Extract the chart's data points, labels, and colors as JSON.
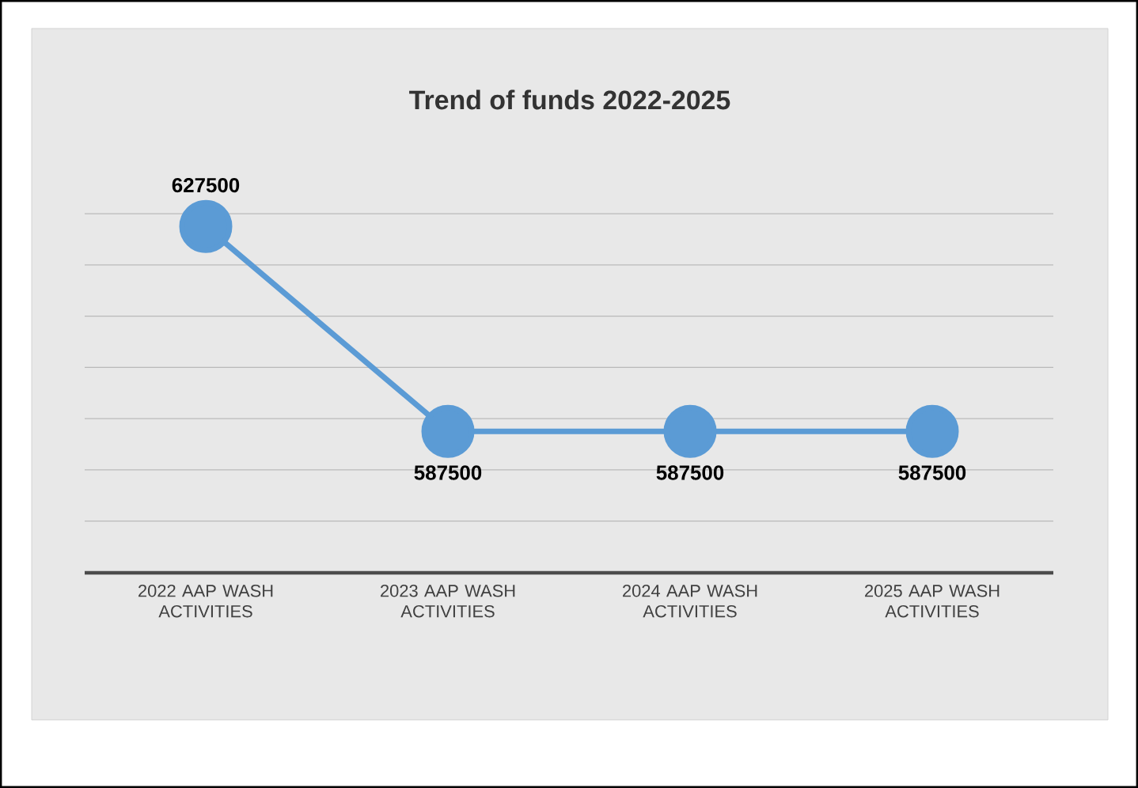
{
  "chart_data": {
    "type": "line",
    "title": "Trend of funds 2022-2025",
    "categories": [
      "2022 AAP WASH ACTIVITIES",
      "2023 AAP WASH ACTIVITIES",
      "2024 AAP WASH ACTIVITIES",
      "2025 AAP WASH ACTIVITIES"
    ],
    "values": [
      627500,
      587500,
      587500,
      587500
    ],
    "color": "#5b9bd5",
    "tick_labels": "x",
    "grid": "y",
    "marker": "circle",
    "line_style": "solid",
    "data_labels": true
  }
}
